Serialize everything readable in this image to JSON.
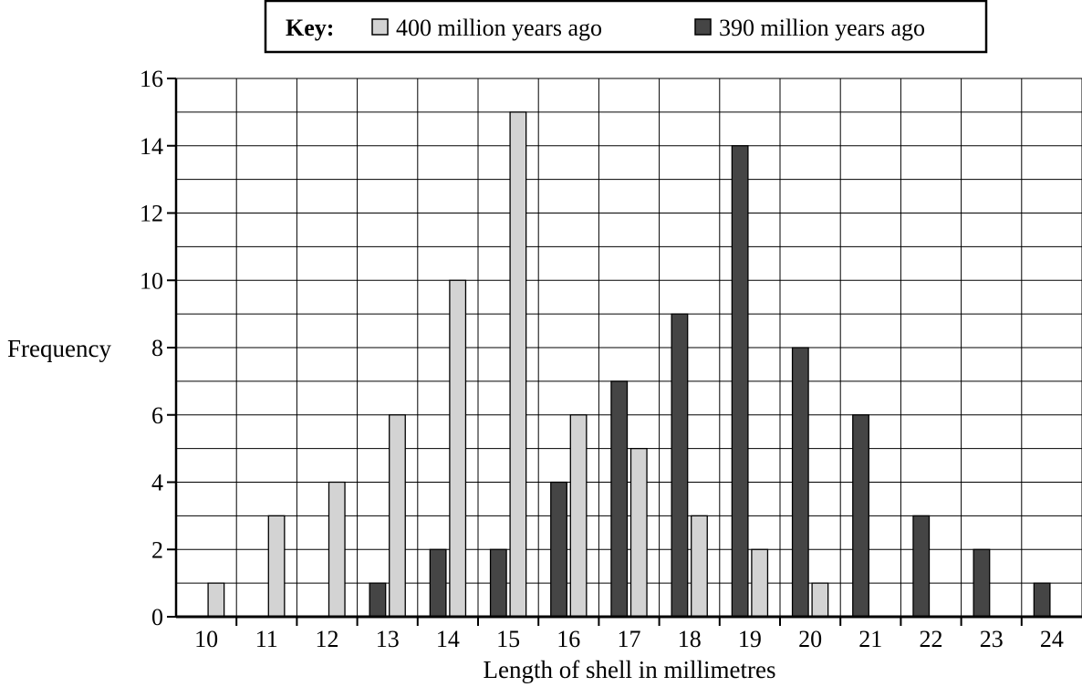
{
  "chart_data": {
    "type": "bar",
    "title": "",
    "xlabel": "Length of shell in millimetres",
    "ylabel": "Frequency",
    "categories": [
      "10",
      "11",
      "12",
      "13",
      "14",
      "15",
      "16",
      "17",
      "18",
      "19",
      "20",
      "21",
      "22",
      "23",
      "24"
    ],
    "ylim": [
      0,
      16
    ],
    "yticks": [
      "0",
      "2",
      "4",
      "6",
      "8",
      "10",
      "12",
      "14",
      "16"
    ],
    "grid": true,
    "legend": {
      "title": "Key:",
      "placement": "top-center"
    },
    "series": [
      {
        "name": "400 million years ago",
        "color": "#d3d3d3",
        "values": [
          1,
          3,
          4,
          6,
          10,
          15,
          6,
          5,
          3,
          2,
          1,
          0,
          0,
          0,
          0
        ]
      },
      {
        "name": "390 million years ago",
        "color": "#454545",
        "values": [
          0,
          0,
          0,
          1,
          2,
          2,
          4,
          7,
          9,
          14,
          8,
          6,
          3,
          2,
          1
        ]
      }
    ]
  }
}
